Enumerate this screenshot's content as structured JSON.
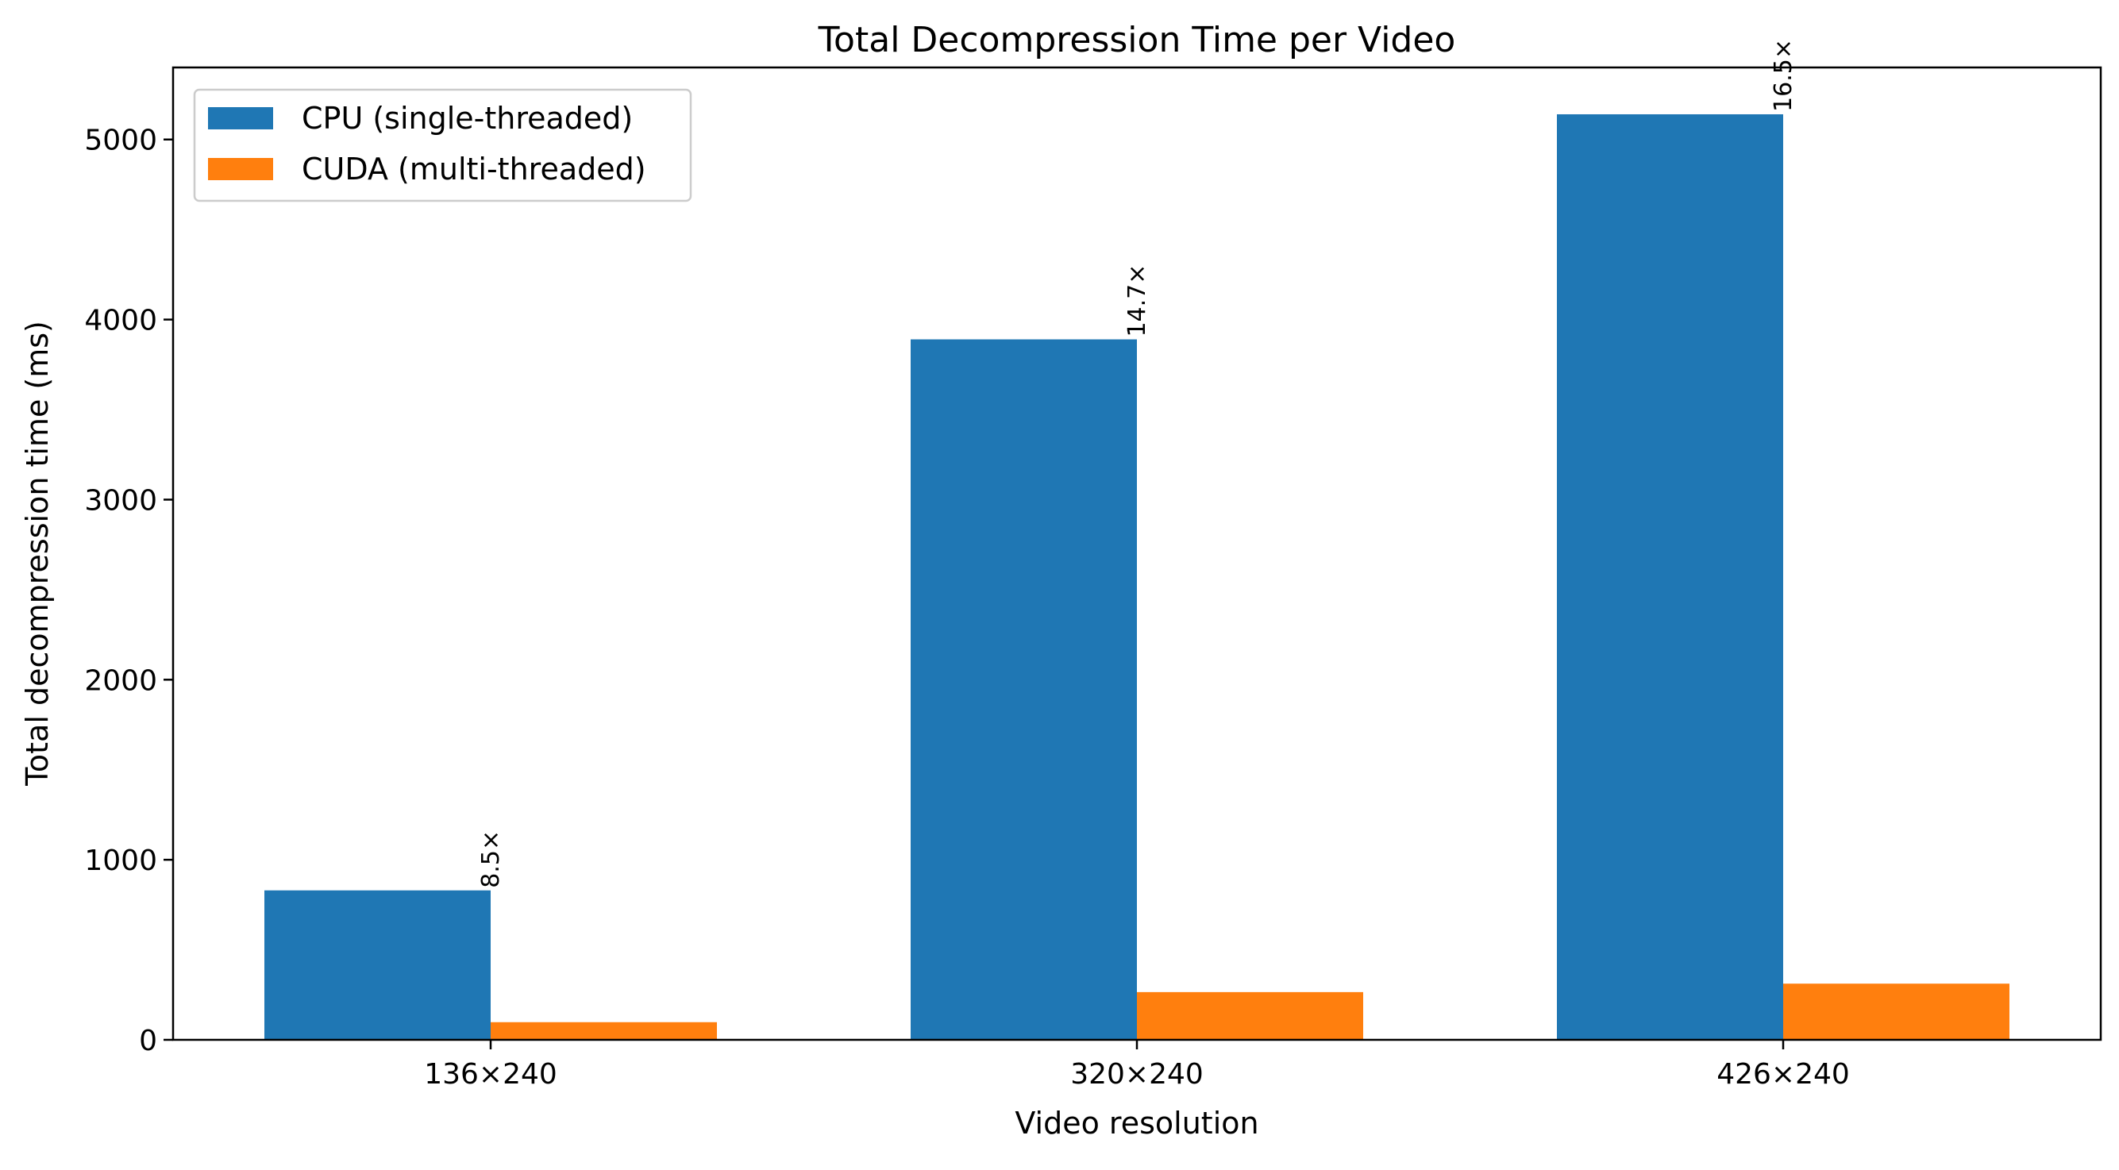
{
  "chart_data": {
    "type": "bar",
    "title": "Total Decompression Time per Video",
    "xlabel": "Video resolution",
    "ylabel": "Total decompression time (ms)",
    "categories": [
      "136×240",
      "320×240",
      "426×240"
    ],
    "series": [
      {
        "name": "CPU (single-threaded)",
        "color": "#1f77b4",
        "values": [
          830,
          3890,
          5140
        ]
      },
      {
        "name": "CUDA (multi-threaded)",
        "color": "#ff7f0e",
        "values": [
          98,
          265,
          312
        ]
      }
    ],
    "annotations": [
      "8.5×",
      "14.7×",
      "16.5×"
    ],
    "ylim": [
      0,
      5400
    ],
    "yticks": [
      0,
      1000,
      2000,
      3000,
      4000,
      5000
    ],
    "legend_position": "upper-left",
    "grid": false
  }
}
